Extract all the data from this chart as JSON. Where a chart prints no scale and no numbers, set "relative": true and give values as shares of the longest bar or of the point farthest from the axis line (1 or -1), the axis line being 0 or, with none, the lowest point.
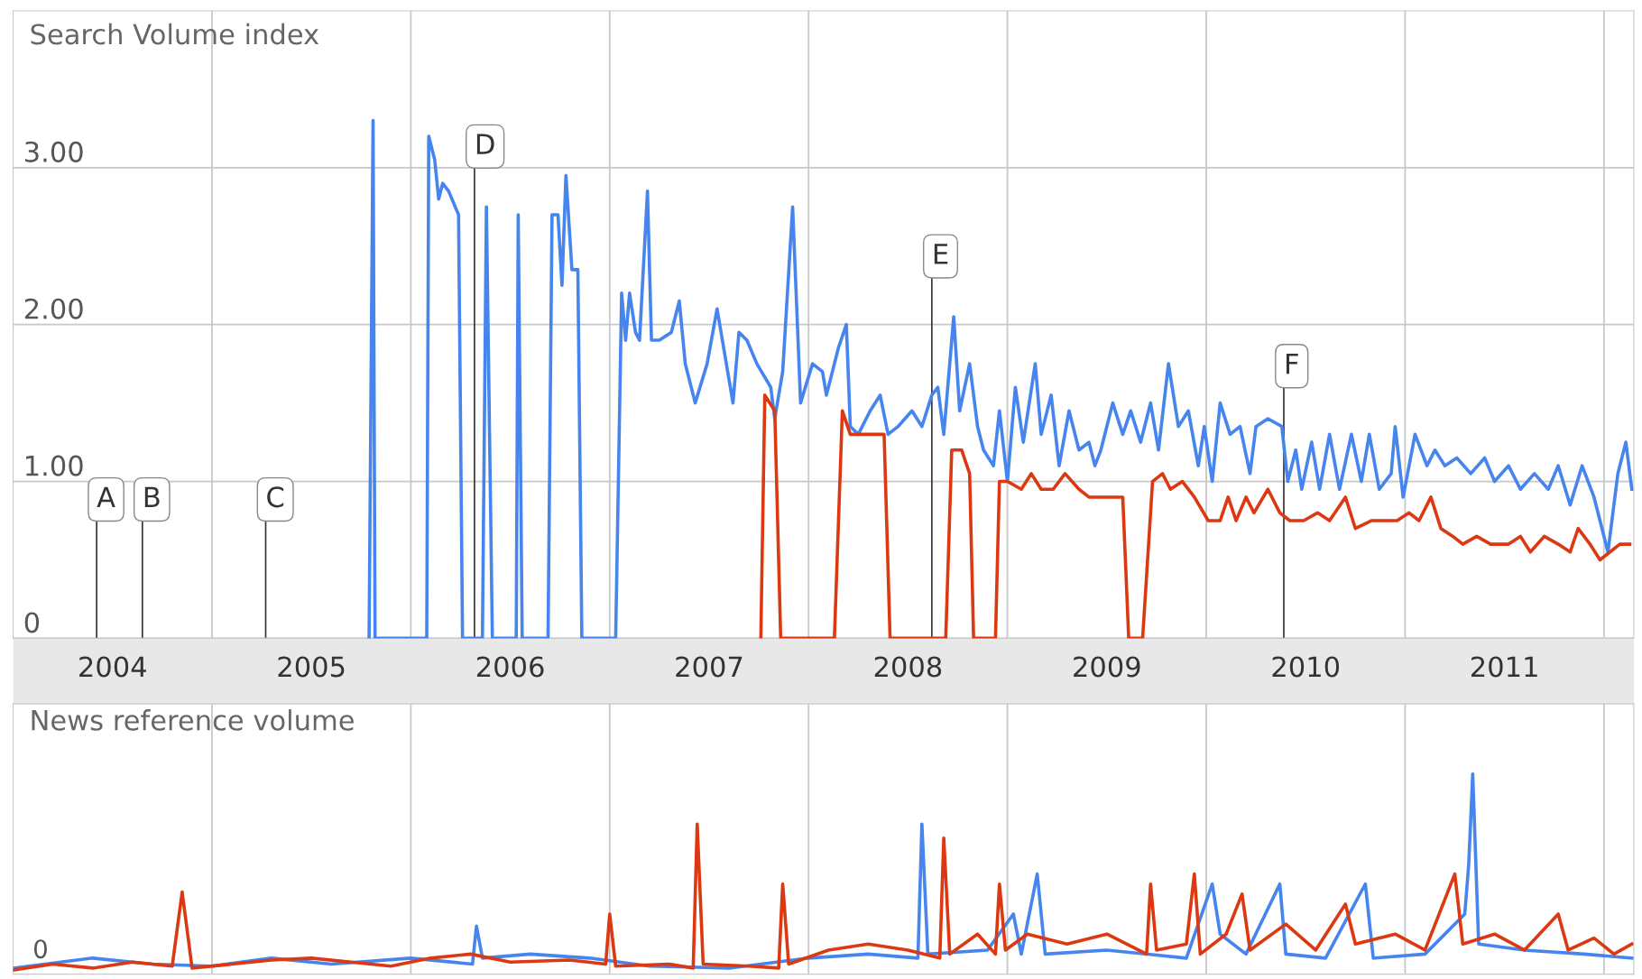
{
  "chart_data": [
    {
      "type": "line",
      "title": "Search Volume index",
      "xlim": [
        2004.0,
        2012.15
      ],
      "ylim": [
        0,
        4.0
      ],
      "xticks": [
        {
          "value": 2004.5,
          "label": "2004"
        },
        {
          "value": 2005.5,
          "label": "2005"
        },
        {
          "value": 2006.5,
          "label": "2006"
        },
        {
          "value": 2007.5,
          "label": "2007"
        },
        {
          "value": 2008.5,
          "label": "2008"
        },
        {
          "value": 2009.5,
          "label": "2009"
        },
        {
          "value": 2010.5,
          "label": "2010"
        },
        {
          "value": 2011.5,
          "label": "2011"
        }
      ],
      "yticks": [
        0,
        {
          "value": 1,
          "label": "1.00"
        },
        {
          "value": 2,
          "label": "2.00"
        },
        {
          "value": 3,
          "label": "3.00"
        }
      ],
      "grid": true,
      "legend": false,
      "line_style": "solid",
      "marker": "none",
      "series": [
        {
          "color": "#4684ee",
          "x": [
            2005.79,
            2005.81,
            2005.82,
            2006.08,
            2006.09,
            2006.12,
            2006.14,
            2006.16,
            2006.19,
            2006.24,
            2006.26,
            2006.36,
            2006.38,
            2006.41,
            2006.53,
            2006.54,
            2006.56,
            2006.69,
            2006.71,
            2006.74,
            2006.76,
            2006.78,
            2006.81,
            2006.84,
            2006.86,
            2007.03,
            2007.06,
            2007.08,
            2007.1,
            2007.13,
            2007.15,
            2007.19,
            2007.21,
            2007.25,
            2007.31,
            2007.35,
            2007.38,
            2007.43,
            2007.49,
            2007.54,
            2007.58,
            2007.62,
            2007.65,
            2007.69,
            2007.74,
            2007.81,
            2007.83,
            2007.87,
            2007.92,
            2007.96,
            2008.02,
            2008.07,
            2008.09,
            2008.15,
            2008.19,
            2008.21,
            2008.25,
            2008.31,
            2008.36,
            2008.4,
            2008.45,
            2008.52,
            2008.57,
            2008.62,
            2008.65,
            2008.68,
            2008.73,
            2008.76,
            2008.81,
            2008.85,
            2008.88,
            2008.93,
            2008.96,
            2009.0,
            2009.04,
            2009.08,
            2009.14,
            2009.17,
            2009.22,
            2009.26,
            2009.31,
            2009.36,
            2009.41,
            2009.44,
            2009.47,
            2009.53,
            2009.58,
            2009.62,
            2009.67,
            2009.72,
            2009.76,
            2009.81,
            2009.86,
            2009.91,
            2009.96,
            2009.99,
            2010.03,
            2010.07,
            2010.12,
            2010.17,
            2010.22,
            2010.25,
            2010.31,
            2010.38,
            2010.41,
            2010.45,
            2010.48,
            2010.53,
            2010.57,
            2010.62,
            2010.67,
            2010.73,
            2010.78,
            2010.82,
            2010.87,
            2010.93,
            2010.95,
            2010.99,
            2011.05,
            2011.11,
            2011.15,
            2011.2,
            2011.26,
            2011.33,
            2011.4,
            2011.45,
            2011.52,
            2011.58,
            2011.65,
            2011.72,
            2011.77,
            2011.83,
            2011.89,
            2011.95,
            2012.02,
            2012.07,
            2012.11,
            2012.14
          ],
          "values": [
            0,
            3.3,
            0,
            0,
            3.2,
            3.05,
            2.8,
            2.9,
            2.85,
            2.7,
            0,
            0,
            2.75,
            0,
            0,
            2.7,
            0,
            0,
            2.7,
            2.7,
            2.25,
            2.95,
            2.35,
            2.35,
            0,
            0,
            2.2,
            1.9,
            2.2,
            1.95,
            1.9,
            2.85,
            1.9,
            1.9,
            1.95,
            2.15,
            1.75,
            1.5,
            1.75,
            2.1,
            1.8,
            1.5,
            1.95,
            1.9,
            1.75,
            1.6,
            1.4,
            1.7,
            2.75,
            1.5,
            1.75,
            1.7,
            1.55,
            1.85,
            2.0,
            1.35,
            1.3,
            1.45,
            1.55,
            1.3,
            1.35,
            1.45,
            1.35,
            1.55,
            1.6,
            1.3,
            2.05,
            1.45,
            1.75,
            1.35,
            1.2,
            1.1,
            1.45,
            1.0,
            1.6,
            1.25,
            1.75,
            1.3,
            1.55,
            1.1,
            1.45,
            1.2,
            1.25,
            1.1,
            1.2,
            1.5,
            1.3,
            1.45,
            1.25,
            1.5,
            1.2,
            1.75,
            1.35,
            1.45,
            1.1,
            1.35,
            1.0,
            1.5,
            1.3,
            1.35,
            1.05,
            1.35,
            1.4,
            1.35,
            1.0,
            1.2,
            0.95,
            1.25,
            0.95,
            1.3,
            0.95,
            1.3,
            1.0,
            1.3,
            0.95,
            1.05,
            1.35,
            0.9,
            1.3,
            1.1,
            1.2,
            1.1,
            1.15,
            1.05,
            1.15,
            1.0,
            1.1,
            0.95,
            1.05,
            0.95,
            1.1,
            0.85,
            1.1,
            0.9,
            0.55,
            1.05,
            1.25,
            0.95
          ]
        },
        {
          "color": "#dc3912",
          "x": [
            2007.76,
            2007.78,
            2007.83,
            2007.86,
            2008.13,
            2008.17,
            2008.21,
            2008.38,
            2008.41,
            2008.69,
            2008.72,
            2008.77,
            2008.81,
            2008.83,
            2008.94,
            2008.96,
            2009.0,
            2009.07,
            2009.12,
            2009.17,
            2009.23,
            2009.29,
            2009.36,
            2009.41,
            2009.49,
            2009.58,
            2009.61,
            2009.68,
            2009.73,
            2009.78,
            2009.82,
            2009.88,
            2009.94,
            2010.01,
            2010.07,
            2010.11,
            2010.15,
            2010.2,
            2010.24,
            2010.31,
            2010.37,
            2010.42,
            2010.49,
            2010.56,
            2010.62,
            2010.7,
            2010.75,
            2010.83,
            2010.88,
            2010.96,
            2011.02,
            2011.07,
            2011.13,
            2011.18,
            2011.24,
            2011.29,
            2011.36,
            2011.43,
            2011.52,
            2011.58,
            2011.63,
            2011.7,
            2011.77,
            2011.83,
            2011.87,
            2011.93,
            2011.98,
            2012.03,
            2012.08,
            2012.13
          ],
          "values": [
            0,
            1.55,
            1.45,
            0,
            0,
            1.45,
            1.3,
            1.3,
            0,
            0,
            1.2,
            1.2,
            1.05,
            0,
            0,
            1.0,
            1.0,
            0.95,
            1.05,
            0.95,
            0.95,
            1.05,
            0.95,
            0.9,
            0.9,
            0.9,
            0,
            0,
            1.0,
            1.05,
            0.95,
            1.0,
            0.9,
            0.75,
            0.75,
            0.9,
            0.75,
            0.9,
            0.8,
            0.95,
            0.8,
            0.75,
            0.75,
            0.8,
            0.75,
            0.9,
            0.7,
            0.75,
            0.75,
            0.75,
            0.8,
            0.75,
            0.9,
            0.7,
            0.65,
            0.6,
            0.65,
            0.6,
            0.6,
            0.65,
            0.55,
            0.65,
            0.6,
            0.55,
            0.7,
            0.6,
            0.5,
            0.55,
            0.6,
            0.6
          ]
        }
      ],
      "ref_lines": [
        {
          "axis": "x",
          "value": 2004.42,
          "label": "A"
        },
        {
          "axis": "x",
          "value": 2004.65,
          "label": "B"
        },
        {
          "axis": "x",
          "value": 2005.27,
          "label": "C"
        },
        {
          "axis": "x",
          "value": 2006.32,
          "label": "D"
        },
        {
          "axis": "x",
          "value": 2008.62,
          "label": "E"
        },
        {
          "axis": "x",
          "value": 2010.39,
          "label": "F"
        }
      ]
    },
    {
      "type": "line",
      "title": "News reference volume",
      "relative": true,
      "xlim": [
        2004.0,
        2012.15
      ],
      "grid": "x",
      "legend": false,
      "line_style": "solid",
      "marker": "none",
      "series": [
        {
          "color": "#4684ee",
          "x": [
            2004.0,
            2004.4,
            2004.7,
            2005.0,
            2005.3,
            2005.6,
            2006.0,
            2006.31,
            2006.33,
            2006.36,
            2006.6,
            2006.9,
            2007.2,
            2007.6,
            2008.0,
            2008.3,
            2008.55,
            2008.57,
            2008.6,
            2008.9,
            2009.03,
            2009.07,
            2009.15,
            2009.19,
            2009.5,
            2009.9,
            2010.03,
            2010.07,
            2010.2,
            2010.37,
            2010.4,
            2010.6,
            2010.8,
            2010.84,
            2011.1,
            2011.3,
            2011.32,
            2011.34,
            2011.37,
            2011.6,
            2011.9,
            2012.14
          ],
          "values": [
            0.03,
            0.08,
            0.05,
            0.04,
            0.08,
            0.05,
            0.08,
            0.05,
            0.24,
            0.08,
            0.1,
            0.08,
            0.04,
            0.03,
            0.08,
            0.1,
            0.08,
            0.75,
            0.1,
            0.12,
            0.3,
            0.1,
            0.5,
            0.1,
            0.12,
            0.08,
            0.45,
            0.2,
            0.1,
            0.45,
            0.1,
            0.08,
            0.45,
            0.08,
            0.1,
            0.3,
            0.55,
            1.0,
            0.15,
            0.12,
            0.1,
            0.08
          ]
        },
        {
          "color": "#dc3912",
          "x": [
            2004.0,
            2004.2,
            2004.4,
            2004.6,
            2004.8,
            2004.85,
            2004.9,
            2005.1,
            2005.3,
            2005.5,
            2005.7,
            2005.9,
            2006.1,
            2006.3,
            2006.5,
            2006.8,
            2006.98,
            2007.0,
            2007.03,
            2007.3,
            2007.42,
            2007.44,
            2007.47,
            2007.7,
            2007.85,
            2007.87,
            2007.9,
            2008.1,
            2008.3,
            2008.5,
            2008.66,
            2008.68,
            2008.71,
            2008.85,
            2008.94,
            2008.96,
            2008.99,
            2009.1,
            2009.3,
            2009.5,
            2009.7,
            2009.72,
            2009.75,
            2009.9,
            2009.94,
            2009.97,
            2010.1,
            2010.18,
            2010.22,
            2010.4,
            2010.55,
            2010.7,
            2010.75,
            2010.95,
            2011.1,
            2011.25,
            2011.29,
            2011.45,
            2011.6,
            2011.77,
            2011.82,
            2011.95,
            2012.05,
            2012.14
          ],
          "values": [
            0.02,
            0.05,
            0.03,
            0.06,
            0.04,
            0.41,
            0.03,
            0.05,
            0.07,
            0.08,
            0.06,
            0.04,
            0.08,
            0.1,
            0.06,
            0.07,
            0.05,
            0.3,
            0.04,
            0.05,
            0.03,
            0.75,
            0.05,
            0.04,
            0.03,
            0.45,
            0.05,
            0.12,
            0.15,
            0.12,
            0.08,
            0.68,
            0.1,
            0.2,
            0.1,
            0.45,
            0.12,
            0.2,
            0.15,
            0.2,
            0.1,
            0.45,
            0.12,
            0.15,
            0.5,
            0.1,
            0.2,
            0.4,
            0.12,
            0.25,
            0.12,
            0.35,
            0.15,
            0.2,
            0.12,
            0.5,
            0.15,
            0.2,
            0.12,
            0.3,
            0.12,
            0.18,
            0.1,
            0.15
          ]
        }
      ],
      "annotations": [
        "0"
      ]
    }
  ]
}
